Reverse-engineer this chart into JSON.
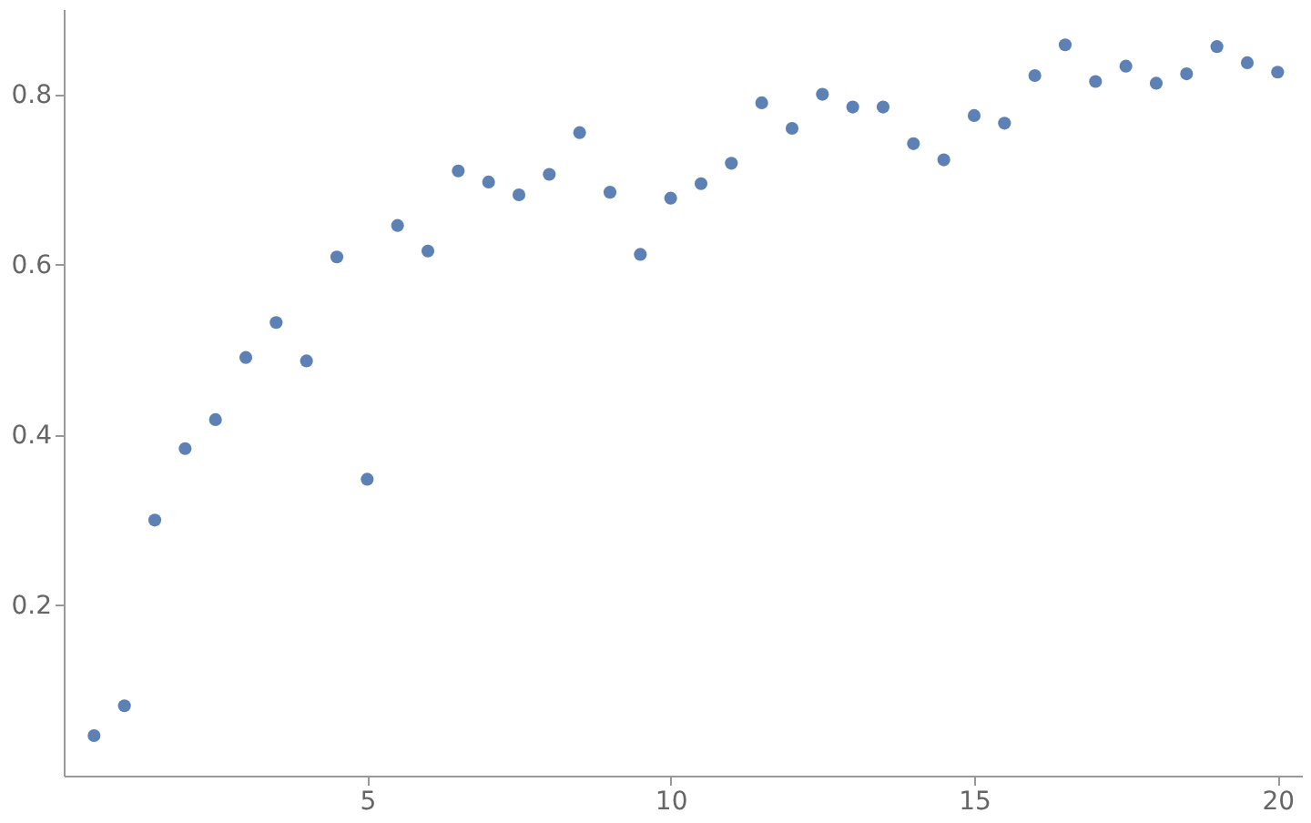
{
  "chart_data": {
    "type": "scatter",
    "x": [
      0.5,
      1,
      1.5,
      2,
      2.5,
      3,
      3.5,
      4,
      4.5,
      5,
      5.5,
      6,
      6.5,
      7,
      7.5,
      8,
      8.5,
      9,
      9.5,
      10,
      10.5,
      11,
      11.5,
      12,
      12.5,
      13,
      13.5,
      14,
      14.5,
      15,
      15.5,
      16,
      16.5,
      17,
      17.5,
      18,
      18.5,
      19,
      19.5,
      20
    ],
    "series": [
      {
        "color": "#5e81b5",
        "values": [
          0.047,
          0.082,
          0.3,
          0.384,
          0.418,
          0.491,
          0.532,
          0.487,
          0.609,
          0.348,
          0.646,
          0.616,
          0.71,
          0.697,
          0.682,
          0.706,
          0.755,
          0.685,
          0.612,
          0.678,
          0.695,
          0.719,
          0.79,
          0.76,
          0.8,
          0.785,
          0.785,
          0.742,
          0.723,
          0.775,
          0.766,
          0.822,
          0.858,
          0.815,
          0.833,
          0.813,
          0.824,
          0.856,
          0.837,
          0.826
        ]
      }
    ],
    "xlim": [
      0,
      20.4
    ],
    "ylim": [
      0,
      0.9
    ],
    "xticks": [
      5,
      10,
      15,
      20
    ],
    "yticks": [
      0.2,
      0.4,
      0.6,
      0.8
    ],
    "grid": false,
    "legend": false,
    "marker": "circle"
  }
}
